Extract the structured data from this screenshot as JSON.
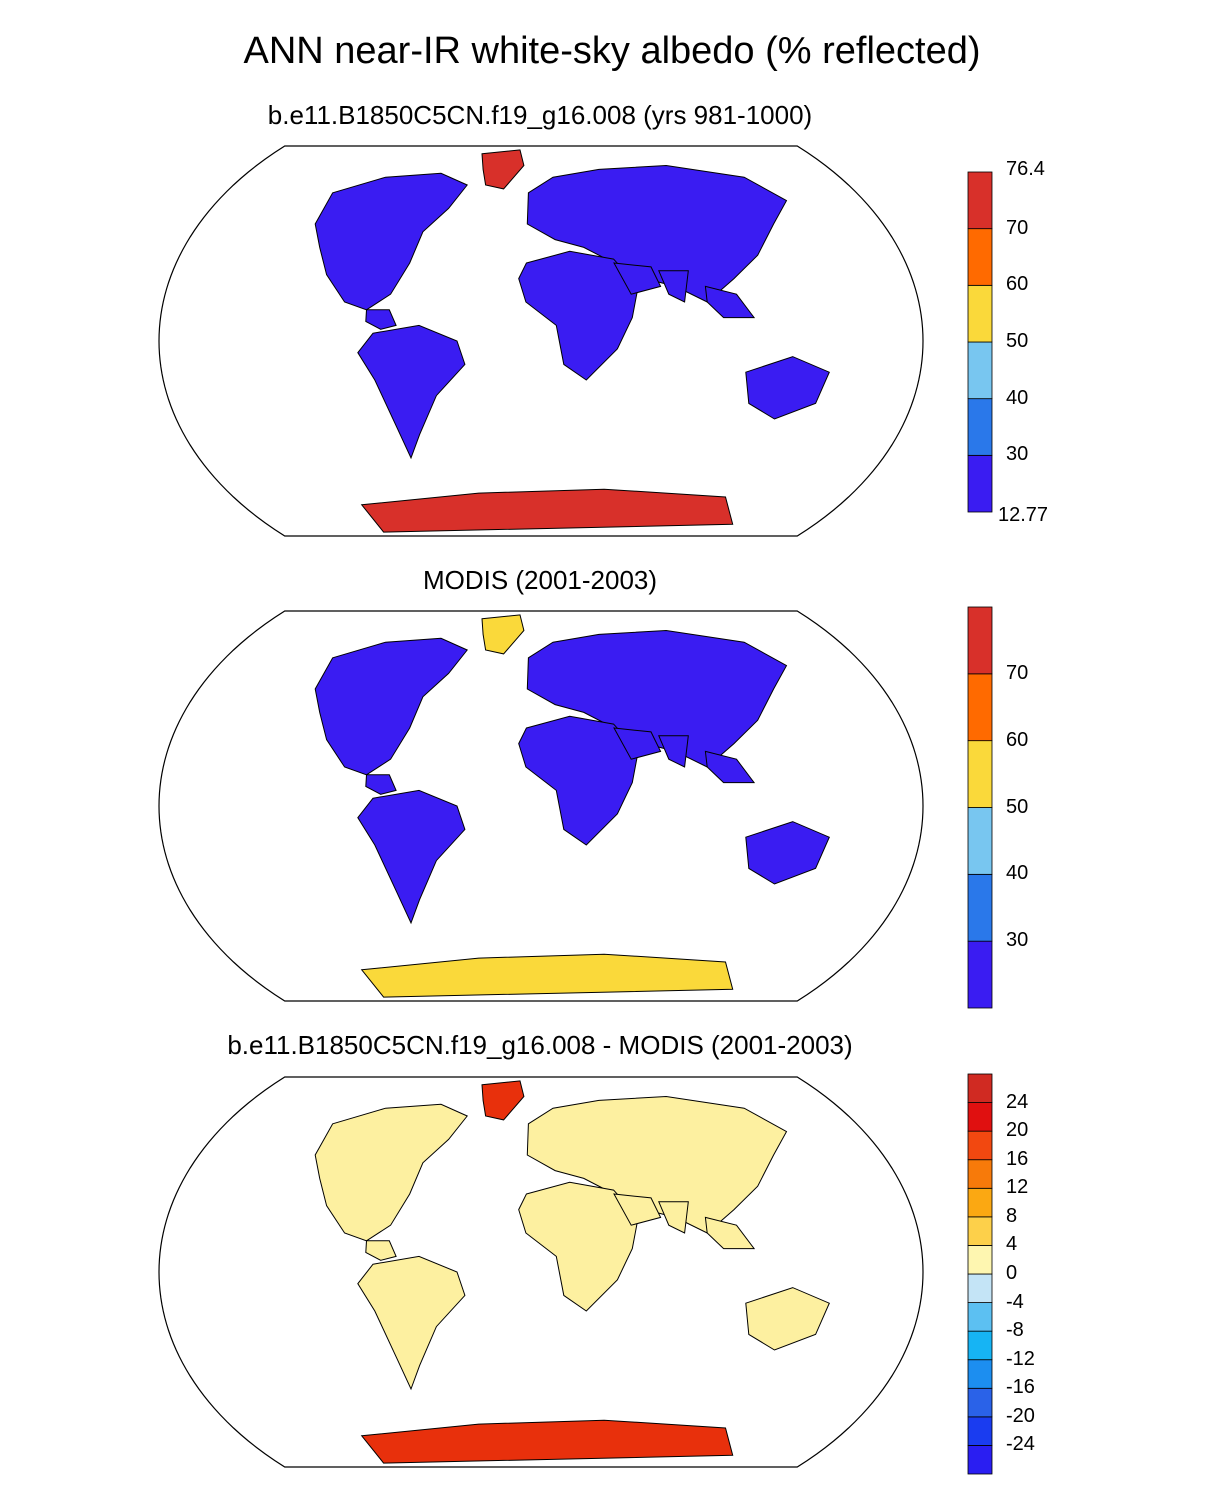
{
  "main_title": "ANN near-IR white-sky albedo (% reflected)",
  "panels": [
    {
      "title": "b.e11.B1850C5CN.f19_g16.008 (yrs 981-1000)",
      "colorbar": {
        "colors": [
          "#3a1cf2",
          "#2a78ea",
          "#78c6f0",
          "#fad93a",
          "#ff6a00",
          "#d8302a"
        ],
        "top_label": "76.4",
        "labels": [
          "70",
          "60",
          "50",
          "40",
          "30"
        ],
        "bottom_label": "12.77"
      },
      "land_color": "#3a1cf2",
      "ice_color": "#d8302a"
    },
    {
      "title": "MODIS (2001-2003)",
      "colorbar": {
        "colors": [
          "#3a1cf2",
          "#2a78ea",
          "#78c6f0",
          "#fad93a",
          "#ff6a00",
          "#d8302a"
        ],
        "labels": [
          "70",
          "60",
          "50",
          "40",
          "30"
        ]
      },
      "land_color": "#3a1cf2",
      "ice_color": "#fad93a"
    },
    {
      "title": "b.e11.B1850C5CN.f19_g16.008 - MODIS (2001-2003)",
      "colorbar": {
        "colors": [
          "#2a1ef2",
          "#1a3cf0",
          "#2a62e8",
          "#1c8ef0",
          "#16b4f4",
          "#5cc0f2",
          "#c4e4f6",
          "#fef6b0",
          "#fdd04a",
          "#fba812",
          "#f77a0a",
          "#f24810",
          "#e01010",
          "#d02a22"
        ],
        "labels": [
          "24",
          "20",
          "16",
          "12",
          "8",
          "4",
          "0",
          "-4",
          "-8",
          "-12",
          "-16",
          "-20",
          "-24"
        ]
      },
      "land_color": "#fdf0a0",
      "ice_color": "#e8300c"
    }
  ]
}
